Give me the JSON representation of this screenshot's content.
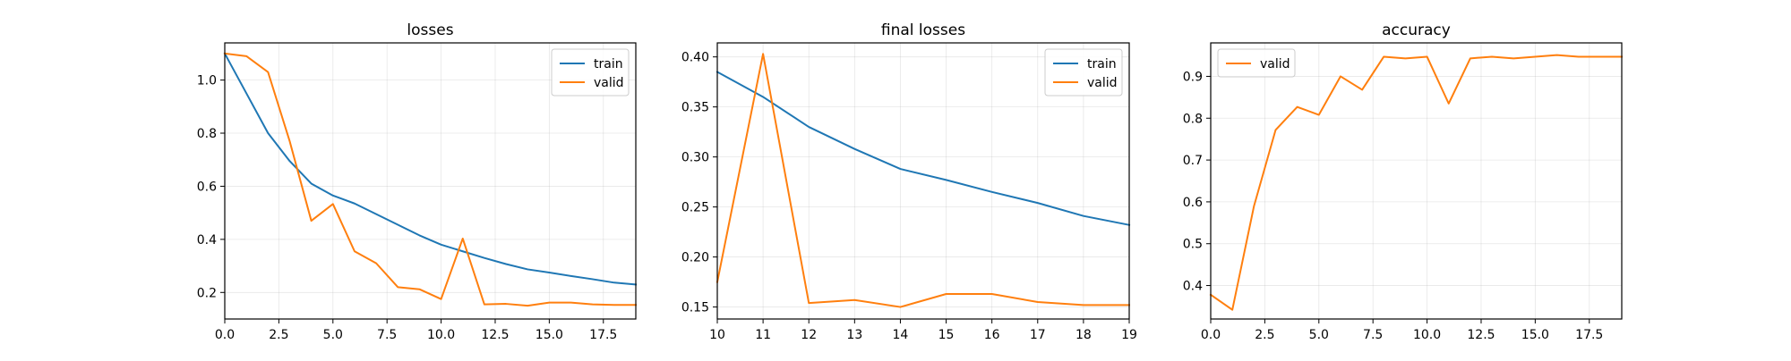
{
  "chart_data": [
    {
      "type": "line",
      "title": "losses",
      "xlabel": "",
      "ylabel": "",
      "xlim": [
        0,
        19
      ],
      "ylim": [
        0.1,
        1.14
      ],
      "xticks": [
        0.0,
        2.5,
        5.0,
        7.5,
        10.0,
        12.5,
        15.0,
        17.5
      ],
      "xtick_labels": [
        "0.0",
        "2.5",
        "5.0",
        "7.5",
        "10.0",
        "12.5",
        "15.0",
        "17.5"
      ],
      "yticks": [
        0.2,
        0.4,
        0.6,
        0.8,
        1.0
      ],
      "ytick_labels": [
        "0.2",
        "0.4",
        "0.6",
        "0.8",
        "1.0"
      ],
      "legend_position": "top-right",
      "grid": true,
      "series": [
        {
          "name": "train",
          "color": "#1f77b4",
          "x": [
            0,
            1,
            2,
            3,
            4,
            5,
            6,
            7,
            8,
            9,
            10,
            11,
            12,
            13,
            14,
            15,
            16,
            17,
            18,
            19
          ],
          "y": [
            1.1,
            0.95,
            0.8,
            0.695,
            0.61,
            0.565,
            0.535,
            0.495,
            0.455,
            0.415,
            0.38,
            0.355,
            0.33,
            0.307,
            0.287,
            0.275,
            0.262,
            0.25,
            0.237,
            0.23
          ]
        },
        {
          "name": "valid",
          "color": "#ff7f0e",
          "x": [
            0,
            1,
            2,
            3,
            4,
            5,
            6,
            7,
            8,
            9,
            10,
            11,
            12,
            13,
            14,
            15,
            16,
            17,
            18,
            19
          ],
          "y": [
            1.1,
            1.09,
            1.03,
            0.77,
            0.47,
            0.533,
            0.355,
            0.31,
            0.22,
            0.212,
            0.175,
            0.403,
            0.155,
            0.157,
            0.15,
            0.162,
            0.162,
            0.155,
            0.153,
            0.153
          ]
        }
      ]
    },
    {
      "type": "line",
      "title": "final losses",
      "xlabel": "",
      "ylabel": "",
      "xlim": [
        10,
        19
      ],
      "ylim": [
        0.138,
        0.414
      ],
      "xticks": [
        10,
        11,
        12,
        13,
        14,
        15,
        16,
        17,
        18,
        19
      ],
      "xtick_labels": [
        "10",
        "11",
        "12",
        "13",
        "14",
        "15",
        "16",
        "17",
        "18",
        "19"
      ],
      "yticks": [
        0.15,
        0.2,
        0.25,
        0.3,
        0.35,
        0.4
      ],
      "ytick_labels": [
        "0.15",
        "0.20",
        "0.25",
        "0.30",
        "0.35",
        "0.40"
      ],
      "legend_position": "top-right",
      "grid": true,
      "series": [
        {
          "name": "train",
          "color": "#1f77b4",
          "x": [
            10,
            11,
            12,
            13,
            14,
            15,
            16,
            17,
            18,
            19
          ],
          "y": [
            0.385,
            0.36,
            0.33,
            0.308,
            0.288,
            0.277,
            0.265,
            0.254,
            0.241,
            0.232
          ]
        },
        {
          "name": "valid",
          "color": "#ff7f0e",
          "x": [
            10,
            11,
            12,
            13,
            14,
            15,
            16,
            17,
            18,
            19
          ],
          "y": [
            0.175,
            0.403,
            0.154,
            0.157,
            0.15,
            0.163,
            0.163,
            0.155,
            0.152,
            0.152
          ]
        }
      ]
    },
    {
      "type": "line",
      "title": "accuracy",
      "xlabel": "",
      "ylabel": "",
      "xlim": [
        0,
        19
      ],
      "ylim": [
        0.32,
        0.98
      ],
      "xticks": [
        0.0,
        2.5,
        5.0,
        7.5,
        10.0,
        12.5,
        15.0,
        17.5
      ],
      "xtick_labels": [
        "0.0",
        "2.5",
        "5.0",
        "7.5",
        "10.0",
        "12.5",
        "15.0",
        "17.5"
      ],
      "yticks": [
        0.4,
        0.5,
        0.6,
        0.7,
        0.8,
        0.9
      ],
      "ytick_labels": [
        "0.4",
        "0.5",
        "0.6",
        "0.7",
        "0.8",
        "0.9"
      ],
      "legend_position": "top-left",
      "grid": true,
      "series": [
        {
          "name": "valid",
          "color": "#ff7f0e",
          "x": [
            0,
            1,
            2,
            3,
            4,
            5,
            6,
            7,
            8,
            9,
            10,
            11,
            12,
            13,
            14,
            15,
            16,
            17,
            18,
            19
          ],
          "y": [
            0.378,
            0.342,
            0.59,
            0.772,
            0.827,
            0.808,
            0.9,
            0.868,
            0.947,
            0.943,
            0.947,
            0.835,
            0.943,
            0.947,
            0.943,
            0.947,
            0.951,
            0.947,
            0.947,
            0.947
          ]
        }
      ]
    }
  ]
}
